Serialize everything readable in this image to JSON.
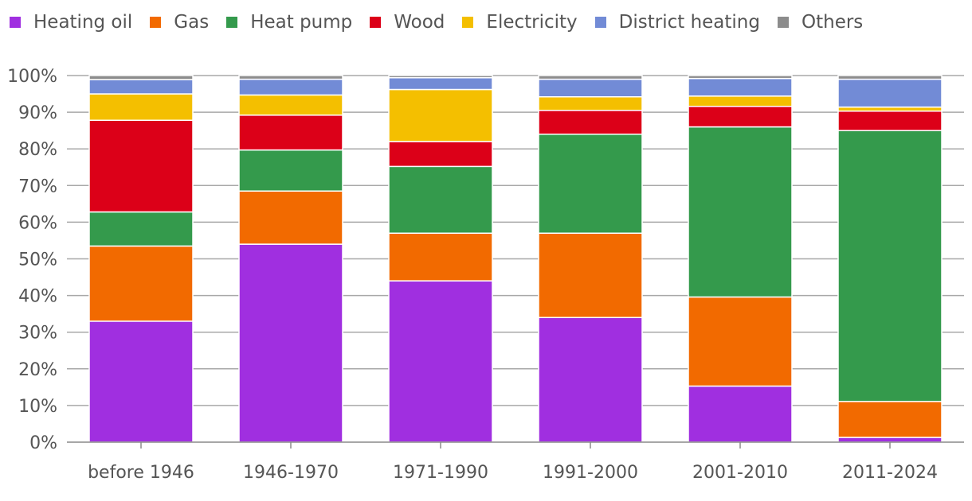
{
  "chart_data": {
    "type": "bar",
    "stacked": true,
    "categories": [
      "before 1946",
      "1946-1970",
      "1971-1990",
      "1991-2000",
      "2001-2010",
      "2011-2024"
    ],
    "series": [
      {
        "name": "Heating oil",
        "color": "#a02fe0",
        "values": [
          33,
          54,
          44,
          34,
          15.3,
          1.3
        ]
      },
      {
        "name": "Gas",
        "color": "#f26a00",
        "values": [
          20.5,
          14.5,
          13,
          23,
          24.3,
          9.8
        ]
      },
      {
        "name": "Heat pump",
        "color": "#349a4c",
        "values": [
          9.3,
          11.2,
          18.2,
          27,
          46.4,
          73.9
        ]
      },
      {
        "name": "Wood",
        "color": "#dc0018",
        "values": [
          25,
          9.5,
          6.8,
          6.5,
          5.6,
          5.3
        ]
      },
      {
        "name": "Electricity",
        "color": "#f4bf00",
        "values": [
          7.2,
          5.5,
          14.2,
          3.7,
          2.8,
          1.1
        ]
      },
      {
        "name": "District heating",
        "color": "#728bd6",
        "values": [
          3.9,
          4.3,
          3.2,
          4.8,
          4.8,
          7.6
        ]
      },
      {
        "name": "Others",
        "color": "#8c8c8c",
        "values": [
          1.1,
          1.0,
          0.6,
          1.0,
          0.8,
          1.0
        ]
      }
    ],
    "yticks": [
      "0%",
      "10%",
      "20%",
      "30%",
      "40%",
      "50%",
      "60%",
      "70%",
      "80%",
      "90%",
      "100%"
    ],
    "ylim": [
      0,
      100
    ],
    "title": "",
    "xlabel": "",
    "ylabel": "",
    "legend_position": "top"
  }
}
